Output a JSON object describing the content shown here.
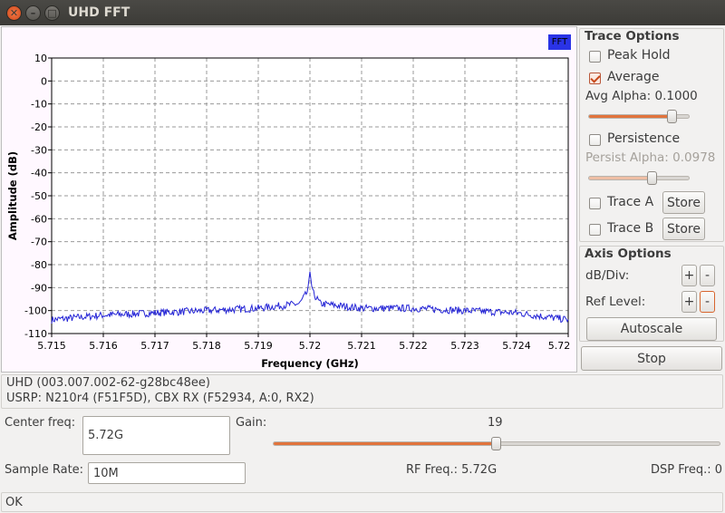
{
  "window": {
    "title": "UHD FFT"
  },
  "plot": {
    "badge": "FFT",
    "xlabel": "Frequency (GHz)",
    "ylabel": "Amplitude (dB)",
    "yticks": [
      "10",
      "0",
      "-10",
      "-20",
      "-30",
      "-40",
      "-50",
      "-60",
      "-70",
      "-80",
      "-90",
      "-100",
      "-110"
    ],
    "xticks": [
      "5.715",
      "5.716",
      "5.717",
      "5.718",
      "5.719",
      "5.72",
      "5.721",
      "5.722",
      "5.723",
      "5.724",
      "5.72"
    ]
  },
  "chart_data": {
    "type": "line",
    "xlabel": "Frequency (GHz)",
    "ylabel": "Amplitude (dB)",
    "xlim": [
      5.715,
      5.725
    ],
    "ylim": [
      -110,
      10
    ],
    "grid": true,
    "series": [
      {
        "x": [
          5.715,
          5.716,
          5.717,
          5.718,
          5.719,
          5.7198,
          5.71995,
          5.72,
          5.72005,
          5.7202,
          5.721,
          5.722,
          5.723,
          5.724,
          5.725
        ],
        "y": [
          -104,
          -102,
          -101,
          -100,
          -99,
          -97,
          -92,
          -83,
          -92,
          -97,
          -99,
          -99,
          -100,
          -101,
          -104
        ]
      }
    ]
  },
  "trace_options": {
    "title": "Trace Options",
    "peak_hold": "Peak Hold",
    "average": "Average",
    "avg_alpha": "Avg Alpha: 0.1000",
    "avg_alpha_value": 0.1,
    "persistence": "Persistence",
    "persist_alpha": "Persist Alpha: 0.0978",
    "persist_alpha_value": 0.0978,
    "trace_a": "Trace A",
    "trace_b": "Trace B",
    "store": "Store"
  },
  "axis_options": {
    "title": "Axis Options",
    "db_div": "dB/Div:",
    "ref_level": "Ref Level:",
    "plus": "+",
    "minus": "-",
    "autoscale": "Autoscale"
  },
  "stop_label": "Stop",
  "device": {
    "uhd_version": "UHD (003.007.002-62-g28bc48ee)",
    "usrp_info": "USRP: N210r4 (F51F5D), CBX RX (F52934, A:0, RX2)"
  },
  "controls": {
    "center_freq_label": "Center freq:",
    "center_freq_value": "5.72G",
    "gain_label": "Gain:",
    "gain_value": "19",
    "sample_rate_label": "Sample Rate:",
    "sample_rate_value": "10M",
    "rf_freq": "RF Freq.: 5.72G",
    "dsp_freq": "DSP Freq.: 0"
  },
  "status": "OK"
}
